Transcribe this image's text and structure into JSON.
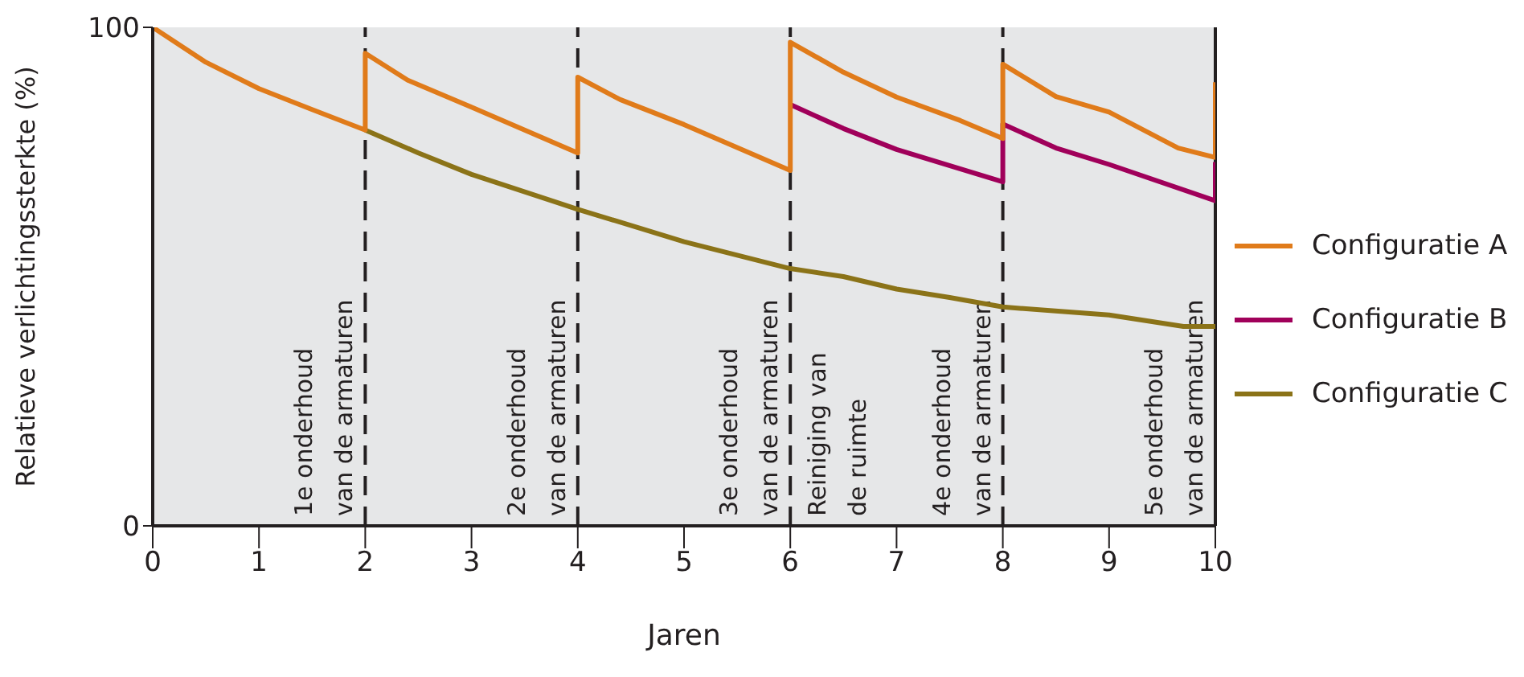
{
  "chart_data": {
    "type": "line",
    "xlabel": "Jaren",
    "ylabel": "Relatieve verlichtingssterkte (%)",
    "xlim": [
      0,
      10
    ],
    "xticks": [
      0,
      1,
      2,
      3,
      4,
      5,
      6,
      7,
      8,
      9,
      10
    ],
    "ylim": [
      0,
      100
    ],
    "yticks": [
      0,
      100
    ],
    "grid": false,
    "legend": "right",
    "marker": "none",
    "line_style": "solid",
    "series": [
      {
        "name": "Configuratie A",
        "color": "#e07b1a",
        "x": [
          0,
          0.5,
          1,
          1.5,
          2,
          2,
          2.4,
          3,
          4,
          4,
          4.4,
          5,
          6,
          6,
          6.5,
          7,
          7.6,
          8,
          8,
          8.5,
          9,
          9.65,
          10,
          10
        ],
        "values": [
          100,
          93,
          87.7,
          83.5,
          79.4,
          94.8,
          89.4,
          84,
          74.8,
          90,
          85.5,
          80.5,
          71.3,
          97,
          91,
          86,
          81.3,
          77.7,
          92.6,
          86.1,
          83,
          75.8,
          73.9,
          89
        ]
      },
      {
        "name": "Configuratie B",
        "color": "#a0005a",
        "x": [
          6,
          6.5,
          7,
          8,
          8,
          8.5,
          9,
          10,
          10
        ],
        "values": [
          84.5,
          79.7,
          75.5,
          69,
          80.6,
          75.8,
          72.5,
          65.2,
          73
        ]
      },
      {
        "name": "Configuratie C",
        "color": "#8b7318",
        "x": [
          2,
          2.5,
          3,
          4,
          5,
          6,
          6.5,
          7,
          7.5,
          8,
          9,
          9.7,
          10
        ],
        "values": [
          79.4,
          74.8,
          70.5,
          63.5,
          57,
          51.6,
          50,
          47.5,
          45.8,
          43.9,
          42.3,
          40,
          40
        ]
      }
    ],
    "ref_lines": [
      {
        "axis": "x",
        "value": 2,
        "color": "#231f20",
        "line_style": "dashed",
        "label": "1e onderhoud\nvan de armaturen"
      },
      {
        "axis": "x",
        "value": 4,
        "color": "#231f20",
        "line_style": "dashed",
        "label": "2e onderhoud\nvan de armaturen"
      },
      {
        "axis": "x",
        "value": 6,
        "color": "#231f20",
        "line_style": "dashed",
        "label": "3e onderhoud\nvan de armaturen"
      },
      {
        "axis": "x",
        "value": 8,
        "color": "#231f20",
        "line_style": "dashed",
        "label": "4e onderhoud\nvan de armaturen"
      },
      {
        "axis": "x",
        "value": 10,
        "color": "#231f20",
        "line_style": "solid",
        "label": "5e onderhoud\nvan de armaturen"
      }
    ],
    "annotations": [
      {
        "text": "Reiniging van\nde ruimte",
        "x": 6
      }
    ]
  }
}
